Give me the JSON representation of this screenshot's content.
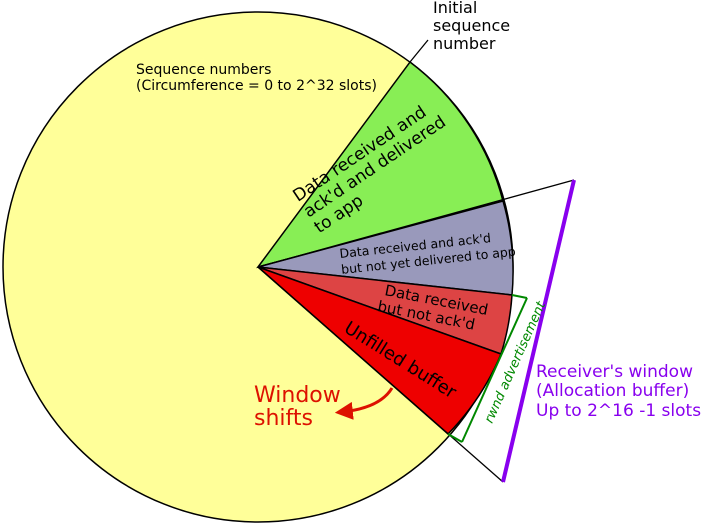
{
  "circle": {
    "label_line1": "Sequence numbers",
    "label_line2": "(Circumference = 0 to 2^32 slots)",
    "fill": "#ffff99"
  },
  "isn_label": [
    "Initial",
    "sequence",
    "number"
  ],
  "segments": {
    "delivered": {
      "lines": [
        "Data received and",
        "ack'd and delivered",
        "to app"
      ],
      "fill": "#88ee55"
    },
    "not_delivered": {
      "lines": [
        "Data received and ack'd",
        "but not yet delivered to app"
      ],
      "fill": "#9999bb"
    },
    "not_acked": {
      "lines": [
        "Data received",
        "but not ack'd"
      ],
      "fill": "#dd4444"
    },
    "unfilled": {
      "lines": [
        "Unfilled buffer"
      ],
      "fill": "#ee0000"
    }
  },
  "window_shift": {
    "lines": [
      "Window",
      "shifts"
    ],
    "color": "#dd1100"
  },
  "rwnd": {
    "label": "rwnd advertisement",
    "color": "#008800"
  },
  "receiver_window": {
    "lines": [
      "Receiver's window",
      "(Allocation buffer)",
      "Up to 2^16 -1 slots"
    ],
    "color": "#8800ee"
  }
}
